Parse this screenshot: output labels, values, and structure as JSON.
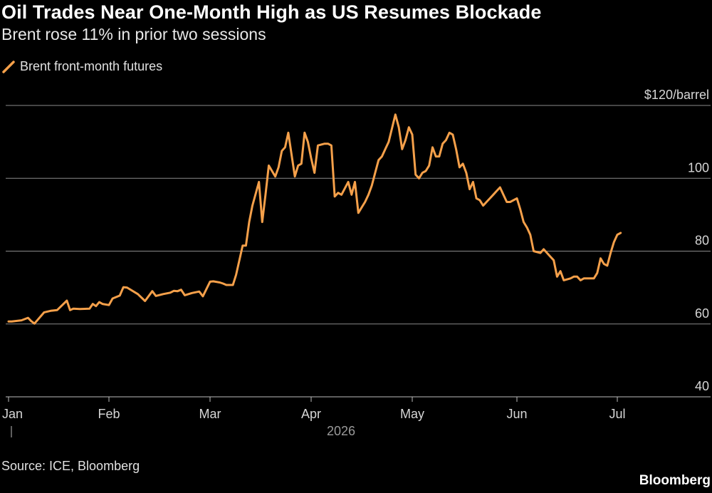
{
  "chart_data": {
    "type": "line",
    "title": "Oil Trades Near One-Month High as US Resumes Blockade",
    "subtitle": "Brent rose 11% in prior two sessions",
    "source": "Source: ICE, Bloomberg",
    "brand": "Bloomberg",
    "ylim": [
      40,
      120
    ],
    "y_ticks": [
      {
        "value": 120,
        "label": "$120/barrel"
      },
      {
        "value": 100,
        "label": "100"
      },
      {
        "value": 80,
        "label": "80"
      },
      {
        "value": 60,
        "label": "60"
      },
      {
        "value": 40,
        "label": "40"
      }
    ],
    "x_ticks": [
      {
        "date": "2026-01-01",
        "label": "Jan"
      },
      {
        "date": "2026-02-01",
        "label": "Feb"
      },
      {
        "date": "2026-03-01",
        "label": "Mar"
      },
      {
        "date": "2026-04-01",
        "label": "Apr"
      },
      {
        "date": "2026-05-01",
        "label": "May"
      },
      {
        "date": "2026-06-01",
        "label": "Jun"
      },
      {
        "date": "2026-07-01",
        "label": "Jul"
      }
    ],
    "xlim": [
      "2026-01-01",
      "2026-07-31"
    ],
    "year_label": "2026",
    "grid": true,
    "legend_position": "top-left",
    "series": [
      {
        "name": "Brent front-month futures",
        "color": "#f5a04a",
        "points": [
          [
            "2026-01-01",
            60.7
          ],
          [
            "2026-01-02",
            60.7
          ],
          [
            "2026-01-05",
            61.0
          ],
          [
            "2026-01-07",
            61.7
          ],
          [
            "2026-01-08",
            60.8
          ],
          [
            "2026-01-09",
            60.1
          ],
          [
            "2026-01-12",
            63.2
          ],
          [
            "2026-01-14",
            63.6
          ],
          [
            "2026-01-16",
            63.8
          ],
          [
            "2026-01-19",
            66.4
          ],
          [
            "2026-01-20",
            63.8
          ],
          [
            "2026-01-21",
            64.2
          ],
          [
            "2026-01-23",
            64.1
          ],
          [
            "2026-01-26",
            64.2
          ],
          [
            "2026-01-27",
            65.5
          ],
          [
            "2026-01-28",
            64.9
          ],
          [
            "2026-01-29",
            66.0
          ],
          [
            "2026-01-30",
            65.5
          ],
          [
            "2026-02-01",
            65.2
          ],
          [
            "2026-02-02",
            67.0
          ],
          [
            "2026-02-04",
            67.8
          ],
          [
            "2026-02-05",
            70.1
          ],
          [
            "2026-02-06",
            70.0
          ],
          [
            "2026-02-09",
            68.2
          ],
          [
            "2026-02-11",
            66.3
          ],
          [
            "2026-02-13",
            69.0
          ],
          [
            "2026-02-14",
            67.7
          ],
          [
            "2026-02-16",
            68.2
          ],
          [
            "2026-02-18",
            68.6
          ],
          [
            "2026-02-19",
            69.1
          ],
          [
            "2026-02-20",
            69.0
          ],
          [
            "2026-02-21",
            69.4
          ],
          [
            "2026-02-22",
            67.9
          ],
          [
            "2026-02-24",
            68.5
          ],
          [
            "2026-02-26",
            68.9
          ],
          [
            "2026-02-27",
            67.6
          ],
          [
            "2026-03-01",
            71.6
          ],
          [
            "2026-03-02",
            71.7
          ],
          [
            "2026-03-04",
            71.4
          ],
          [
            "2026-03-05",
            71.1
          ],
          [
            "2026-03-06",
            70.7
          ],
          [
            "2026-03-08",
            70.7
          ],
          [
            "2026-03-09",
            73.5
          ],
          [
            "2026-03-10",
            77.5
          ],
          [
            "2026-03-11",
            81.5
          ],
          [
            "2026-03-12",
            81.5
          ],
          [
            "2026-03-13",
            88.0
          ],
          [
            "2026-03-14",
            92.5
          ],
          [
            "2026-03-16",
            99.0
          ],
          [
            "2026-03-17",
            88.0
          ],
          [
            "2026-03-18",
            95.5
          ],
          [
            "2026-03-19",
            103.5
          ],
          [
            "2026-03-20",
            102.0
          ],
          [
            "2026-03-21",
            100.5
          ],
          [
            "2026-03-22",
            103.0
          ],
          [
            "2026-03-23",
            107.5
          ],
          [
            "2026-03-24",
            108.5
          ],
          [
            "2026-03-25",
            112.5
          ],
          [
            "2026-03-26",
            106.5
          ],
          [
            "2026-03-27",
            100.5
          ],
          [
            "2026-03-28",
            103.5
          ],
          [
            "2026-03-29",
            104.0
          ],
          [
            "2026-03-30",
            112.5
          ],
          [
            "2026-03-31",
            110.0
          ],
          [
            "2026-04-01",
            105.5
          ],
          [
            "2026-04-02",
            101.5
          ],
          [
            "2026-04-03",
            109.0
          ],
          [
            "2026-04-05",
            109.5
          ],
          [
            "2026-04-06",
            109.5
          ],
          [
            "2026-04-07",
            109.0
          ],
          [
            "2026-04-08",
            95.0
          ],
          [
            "2026-04-09",
            96.0
          ],
          [
            "2026-04-10",
            95.5
          ],
          [
            "2026-04-12",
            99.0
          ],
          [
            "2026-04-13",
            95.5
          ],
          [
            "2026-04-14",
            99.0
          ],
          [
            "2026-04-15",
            90.5
          ],
          [
            "2026-04-16",
            92.0
          ],
          [
            "2026-04-17",
            93.5
          ],
          [
            "2026-04-18",
            95.5
          ],
          [
            "2026-04-19",
            98.0
          ],
          [
            "2026-04-20",
            101.5
          ],
          [
            "2026-04-21",
            105.0
          ],
          [
            "2026-04-22",
            106.0
          ],
          [
            "2026-04-23",
            108.0
          ],
          [
            "2026-04-24",
            110.0
          ],
          [
            "2026-04-26",
            117.5
          ],
          [
            "2026-04-27",
            114.0
          ],
          [
            "2026-04-28",
            108.0
          ],
          [
            "2026-04-29",
            110.5
          ],
          [
            "2026-04-30",
            114.0
          ],
          [
            "2026-05-01",
            112.0
          ],
          [
            "2026-05-02",
            101.0
          ],
          [
            "2026-05-03",
            100.0
          ],
          [
            "2026-05-04",
            101.5
          ],
          [
            "2026-05-05",
            102.0
          ],
          [
            "2026-05-06",
            103.5
          ],
          [
            "2026-05-07",
            108.5
          ],
          [
            "2026-05-08",
            106.0
          ],
          [
            "2026-05-09",
            106.0
          ],
          [
            "2026-05-10",
            109.5
          ],
          [
            "2026-05-11",
            110.5
          ],
          [
            "2026-05-12",
            112.5
          ],
          [
            "2026-05-13",
            112.0
          ],
          [
            "2026-05-14",
            108.0
          ],
          [
            "2026-05-15",
            103.0
          ],
          [
            "2026-05-16",
            104.0
          ],
          [
            "2026-05-17",
            101.5
          ],
          [
            "2026-05-18",
            97.0
          ],
          [
            "2026-05-19",
            99.0
          ],
          [
            "2026-05-20",
            94.5
          ],
          [
            "2026-05-21",
            94.0
          ],
          [
            "2026-05-22",
            92.5
          ],
          [
            "2026-05-23",
            93.5
          ],
          [
            "2026-05-24",
            94.5
          ],
          [
            "2026-05-25",
            95.5
          ],
          [
            "2026-05-26",
            96.5
          ],
          [
            "2026-05-27",
            97.5
          ],
          [
            "2026-05-28",
            95.5
          ],
          [
            "2026-05-29",
            93.5
          ],
          [
            "2026-05-30",
            93.5
          ],
          [
            "2026-06-01",
            94.5
          ],
          [
            "2026-06-02",
            91.5
          ],
          [
            "2026-06-03",
            88.0
          ],
          [
            "2026-06-04",
            86.5
          ],
          [
            "2026-06-05",
            84.5
          ],
          [
            "2026-06-06",
            80.0
          ],
          [
            "2026-06-08",
            79.5
          ],
          [
            "2026-06-09",
            80.5
          ],
          [
            "2026-06-11",
            78.5
          ],
          [
            "2026-06-12",
            77.5
          ],
          [
            "2026-06-13",
            73.0
          ],
          [
            "2026-06-14",
            74.5
          ],
          [
            "2026-06-15",
            72.0
          ],
          [
            "2026-06-17",
            72.5
          ],
          [
            "2026-06-18",
            73.0
          ],
          [
            "2026-06-19",
            73.0
          ],
          [
            "2026-06-20",
            72.0
          ],
          [
            "2026-06-21",
            72.5
          ],
          [
            "2026-06-22",
            72.5
          ],
          [
            "2026-06-24",
            72.5
          ],
          [
            "2026-06-25",
            74.0
          ],
          [
            "2026-06-26",
            78.0
          ],
          [
            "2026-06-27",
            76.5
          ],
          [
            "2026-06-28",
            76.0
          ],
          [
            "2026-06-29",
            79.5
          ],
          [
            "2026-06-30",
            82.5
          ],
          [
            "2026-07-01",
            84.5
          ],
          [
            "2026-07-02",
            85.0
          ]
        ]
      }
    ]
  }
}
